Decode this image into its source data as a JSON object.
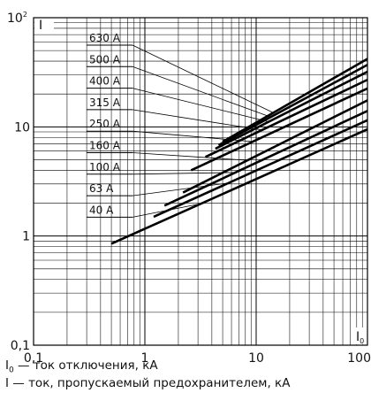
{
  "chart_data": {
    "type": "line",
    "x_scale": "log",
    "y_scale": "log",
    "xlim": [
      0.1,
      100
    ],
    "ylim": [
      0.1,
      100
    ],
    "grid": true,
    "x_ticks": [
      "0,1",
      "1",
      "10",
      "100"
    ],
    "y_ticks": [
      "0,1",
      "1",
      "10"
    ],
    "y_top_label": {
      "base": "10",
      "exp": "2"
    },
    "y_axis_label": "I",
    "x_axis_label": {
      "base": "I",
      "sub": "0"
    },
    "series": [
      {
        "name": "630 A",
        "x": [
          5,
          100
        ],
        "y": [
          7.3,
          42
        ]
      },
      {
        "name": "500 A",
        "x": [
          4.6,
          100
        ],
        "y": [
          6.8,
          37
        ]
      },
      {
        "name": "400 A",
        "x": [
          4.3,
          100
        ],
        "y": [
          6.3,
          32
        ]
      },
      {
        "name": "315 A",
        "x": [
          3.5,
          100
        ],
        "y": [
          5.3,
          27
        ]
      },
      {
        "name": "250 A",
        "x": [
          2.6,
          100
        ],
        "y": [
          4.0,
          22.5
        ]
      },
      {
        "name": "160 A",
        "x": [
          2.2,
          100
        ],
        "y": [
          2.5,
          17.5
        ]
      },
      {
        "name": "100 A",
        "x": [
          1.5,
          100
        ],
        "y": [
          1.9,
          14
        ]
      },
      {
        "name": "63 A",
        "x": [
          1.2,
          100
        ],
        "y": [
          1.5,
          11.5
        ]
      },
      {
        "name": "40 A",
        "x": [
          0.5,
          100
        ],
        "y": [
          0.85,
          9.5
        ]
      }
    ]
  },
  "legend": {
    "line1_base": "I",
    "line1_sub": "0",
    "line1_text": " — ток отключения, кА",
    "line2_text": "I — ток, пропускаемый предохранителем, кА"
  }
}
